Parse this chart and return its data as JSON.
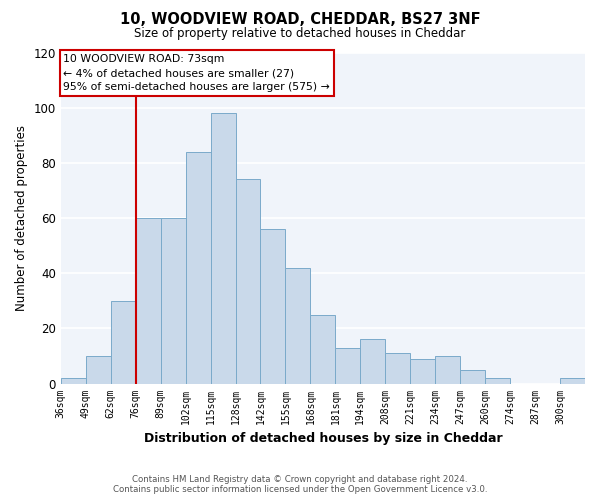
{
  "title": "10, WOODVIEW ROAD, CHEDDAR, BS27 3NF",
  "subtitle": "Size of property relative to detached houses in Cheddar",
  "xlabel": "Distribution of detached houses by size in Cheddar",
  "ylabel": "Number of detached properties",
  "bar_color": "#c9d9ea",
  "bar_edge_color": "#7aaaca",
  "background_color": "#ffffff",
  "plot_bg_color": "#f0f4fa",
  "grid_color": "#ffffff",
  "bins": [
    36,
    49,
    62,
    75,
    88,
    101,
    114,
    127,
    140,
    153,
    166,
    179,
    192,
    205,
    218,
    231,
    244,
    257,
    270,
    283,
    296,
    309
  ],
  "bin_labels": [
    "36sqm",
    "49sqm",
    "62sqm",
    "76sqm",
    "89sqm",
    "102sqm",
    "115sqm",
    "128sqm",
    "142sqm",
    "155sqm",
    "168sqm",
    "181sqm",
    "194sqm",
    "208sqm",
    "221sqm",
    "234sqm",
    "247sqm",
    "260sqm",
    "274sqm",
    "287sqm",
    "300sqm"
  ],
  "counts": [
    2,
    10,
    30,
    60,
    60,
    84,
    98,
    74,
    56,
    42,
    25,
    13,
    16,
    11,
    9,
    10,
    5,
    2,
    0,
    0,
    2
  ],
  "property_line_x": 75,
  "ylim": [
    0,
    120
  ],
  "yticks": [
    0,
    20,
    40,
    60,
    80,
    100,
    120
  ],
  "annotation_lines": [
    "10 WOODVIEW ROAD: 73sqm",
    "← 4% of detached houses are smaller (27)",
    "95% of semi-detached houses are larger (575) →"
  ],
  "annotation_box_color": "#ffffff",
  "annotation_box_edge": "#cc0000",
  "property_line_color": "#cc0000",
  "footer_line1": "Contains HM Land Registry data © Crown copyright and database right 2024.",
  "footer_line2": "Contains public sector information licensed under the Open Government Licence v3.0."
}
